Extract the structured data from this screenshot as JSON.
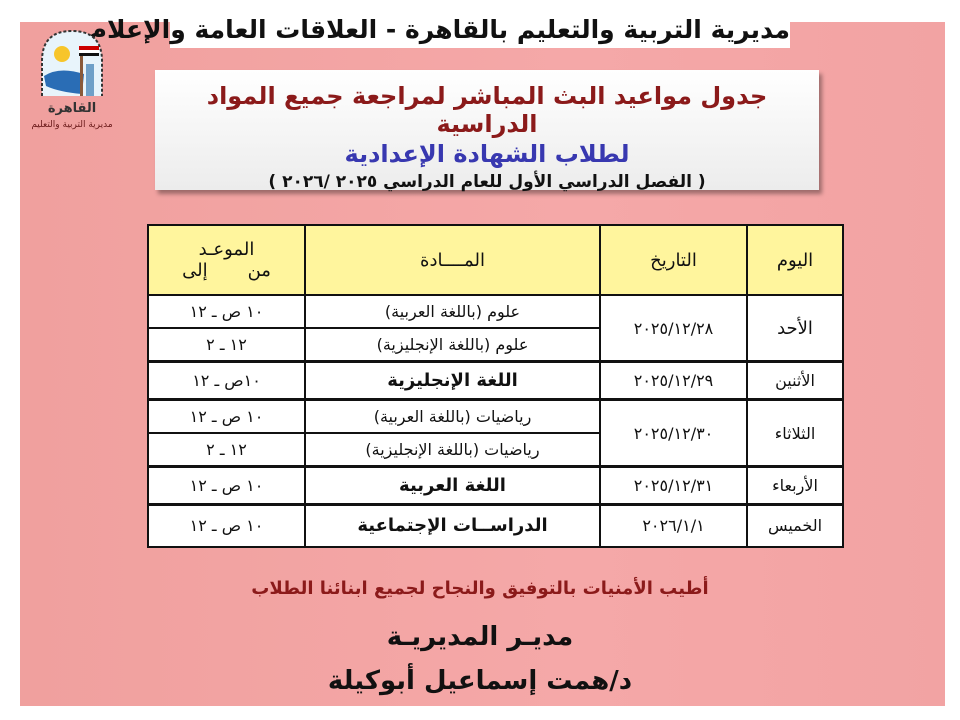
{
  "header": {
    "org_title": "مديرية التربية والتعليم بالقاهرة - العلاقات العامة والإعلام",
    "logo_text": [
      "القاهرة",
      "مديرية التربية والتعليم"
    ]
  },
  "title_box": {
    "line1": "جدول مواعيد البث المباشر لمراجعة جميع المواد الدراسية",
    "line2": "لطلاب الشهادة الإعدادية",
    "line3": "( الفصل الدراسي الأول للعام الدراسي ٢٠٢٥ /٢٠٢٦ )"
  },
  "table": {
    "headers": {
      "day": "اليوم",
      "date": "التاريخ",
      "subject": "المــــادة",
      "time": "الموعـد",
      "time_from": "من",
      "time_to": "إلى"
    },
    "rows": [
      {
        "day": "الأحد",
        "date": "٢٠٢٥/١٢/٢٨",
        "sessions": [
          {
            "subject": "علوم (باللغة العربية)",
            "time": "١٠ ص ـ ١٢"
          },
          {
            "subject": "علوم (باللغة الإنجليزية)",
            "time": "١٢ ـ ٢"
          }
        ]
      },
      {
        "day": "الأثنين",
        "date": "٢٠٢٥/١٢/٢٩",
        "sessions": [
          {
            "subject": "اللغة الإنجليزية",
            "time": "١٠ص ـ ١٢"
          }
        ]
      },
      {
        "day": "الثلاثاء",
        "date": "٢٠٢٥/١٢/٣٠",
        "sessions": [
          {
            "subject": "رياضيات (باللغة العربية)",
            "time": "١٠ ص ـ ١٢"
          },
          {
            "subject": "رياضيات (باللغة الإنجليزية)",
            "time": "١٢ ـ ٢"
          }
        ]
      },
      {
        "day": "الأربعاء",
        "date": "٢٠٢٥/١٢/٣١",
        "sessions": [
          {
            "subject": "اللغة العربية",
            "time": "١٠ ص ـ ١٢"
          }
        ]
      },
      {
        "day": "الخميس",
        "date": "٢٠٢٦/١/١",
        "sessions": [
          {
            "subject": "الدراســات الإجتماعية",
            "time": "١٠ ص ـ ١٢"
          }
        ]
      }
    ]
  },
  "footer": {
    "wishes": "أطيب الأمنيات بالتوفيق والنجاح لجميع ابنائنا الطلاب",
    "signature_title": "مديـر المديريـة",
    "signature_name": "د/همت إسماعيل أبوكيلة"
  },
  "colors": {
    "background": "#f4a5a5",
    "header_fill": "#fff59d",
    "title_red": "#8b1a1a",
    "title_blue": "#3838b0"
  }
}
